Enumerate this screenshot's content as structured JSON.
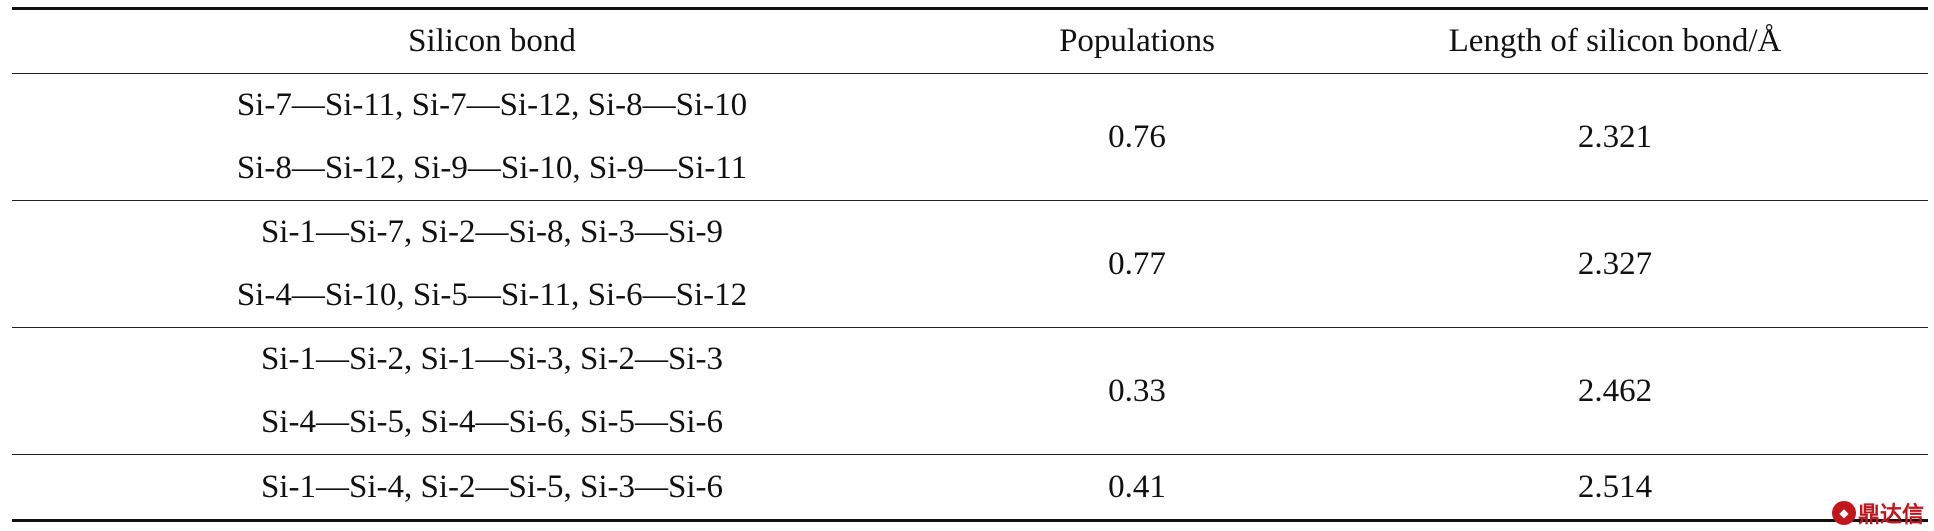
{
  "table": {
    "headers": [
      "Silicon bond",
      "Populations",
      "Length of silicon bond/Å"
    ],
    "rows": [
      {
        "bonds": [
          "Si-7—Si-11, Si-7—Si-12, Si-8—Si-10",
          "Si-8—Si-12, Si-9—Si-10, Si-9—Si-11"
        ],
        "population": "0.76",
        "length": "2.321"
      },
      {
        "bonds": [
          "Si-1—Si-7, Si-2—Si-8, Si-3—Si-9",
          "Si-4—Si-10, Si-5—Si-11, Si-6—Si-12"
        ],
        "population": "0.77",
        "length": "2.327"
      },
      {
        "bonds": [
          "Si-1—Si-2, Si-1—Si-3, Si-2—Si-3",
          "Si-4—Si-5, Si-4—Si-6, Si-5—Si-6"
        ],
        "population": "0.33",
        "length": "2.462"
      },
      {
        "bonds": [
          "Si-1—Si-4, Si-2—Si-5, Si-3—Si-6"
        ],
        "population": "0.41",
        "length": "2.514"
      }
    ]
  },
  "watermark": {
    "icon": "shield-logo-icon",
    "text": "鼎达信",
    "color": "#c0161c"
  }
}
